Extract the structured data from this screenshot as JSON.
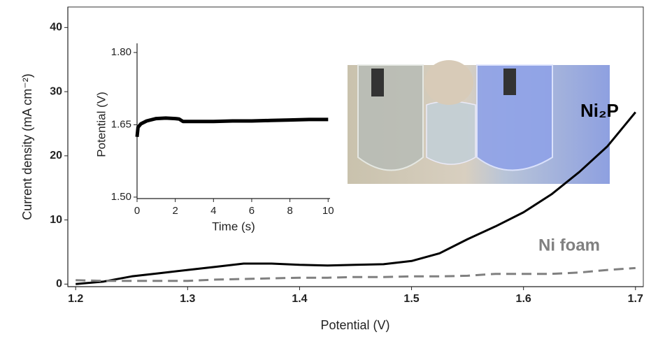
{
  "chart_data": [
    {
      "type": "line",
      "x_label": "Potential (V)",
      "y_label": "Current density (mA cm⁻²)",
      "x": [
        1.2,
        1.225,
        1.25,
        1.275,
        1.3,
        1.325,
        1.35,
        1.375,
        1.4,
        1.425,
        1.45,
        1.475,
        1.5,
        1.525,
        1.55,
        1.575,
        1.6,
        1.625,
        1.65,
        1.675,
        1.7
      ],
      "series": [
        {
          "name": "Ni₂P",
          "color": "#000000",
          "line_style": "solid",
          "values": [
            0,
            0.4,
            1.2,
            1.7,
            2.2,
            2.7,
            3.2,
            3.2,
            3.0,
            2.9,
            3.0,
            3.1,
            3.6,
            4.8,
            7.0,
            9.0,
            11.2,
            14.0,
            17.5,
            21.5,
            26.8
          ]
        },
        {
          "name": "Ni foam",
          "color": "#808080",
          "line_style": "dashed",
          "values": [
            0.6,
            0.5,
            0.5,
            0.5,
            0.5,
            0.7,
            0.8,
            0.9,
            1.0,
            1.0,
            1.1,
            1.1,
            1.2,
            1.2,
            1.3,
            1.6,
            1.6,
            1.6,
            1.8,
            2.2,
            2.5
          ]
        }
      ],
      "xlim": [
        1.193,
        1.707
      ],
      "xticks": [
        1.2,
        1.3,
        1.4,
        1.5,
        1.6,
        1.7
      ],
      "ylim": [
        -0.4,
        43.2
      ],
      "yticks": [
        0,
        10,
        20,
        30,
        40
      ]
    },
    {
      "type": "line",
      "x_label": "Time (s)",
      "y_label": "Potential (V)",
      "x": [
        0,
        0.05,
        0.2,
        0.5,
        1,
        1.5,
        2,
        2.2,
        2.4,
        3,
        4,
        5,
        6,
        7,
        8,
        9,
        10
      ],
      "series": [
        {
          "color": "#000000",
          "line_style": "solid",
          "values": [
            1.625,
            1.645,
            1.652,
            1.658,
            1.663,
            1.664,
            1.663,
            1.662,
            1.657,
            1.657,
            1.657,
            1.658,
            1.658,
            1.659,
            1.66,
            1.661,
            1.661
          ]
        }
      ],
      "xlim": [
        0,
        10.1
      ],
      "xticks": [
        0,
        2,
        4,
        6,
        8,
        10
      ],
      "ylim": [
        1.497,
        1.819
      ],
      "yticks": [
        {
          "value": 1.5,
          "label": "1.50"
        },
        1.65,
        {
          "value": 1.8,
          "label": "1.80"
        }
      ]
    }
  ]
}
